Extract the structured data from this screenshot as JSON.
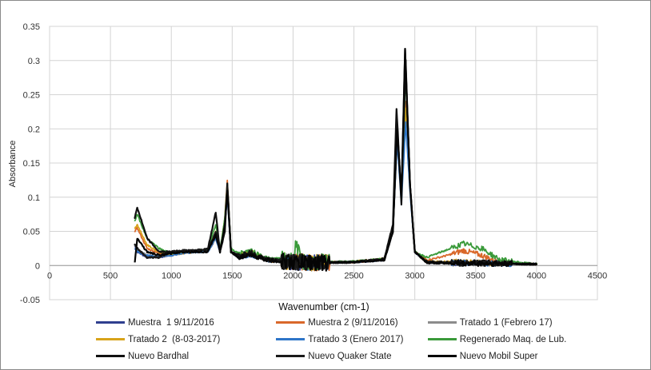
{
  "chart_data": {
    "type": "line",
    "title": "",
    "xlabel": "Wavenumber (cm-1)",
    "ylabel": "Absorbance",
    "xlim": [
      0,
      4500
    ],
    "ylim": [
      -0.05,
      0.35
    ],
    "x_ticks": [
      "0",
      "500",
      "1000",
      "1500",
      "2000",
      "2500",
      "3000",
      "3500",
      "4000",
      "4500"
    ],
    "y_ticks": [
      "-0.05",
      "0",
      "0.05",
      "0.1",
      "0.15",
      "0.2",
      "0.25",
      "0.3",
      "0.35"
    ],
    "grid": "vertical and horizontal",
    "legend_position": "bottom",
    "series": [
      {
        "name": "Muestra  1 9/11/2016",
        "color": "#2f3f8f",
        "points": [
          [
            700,
            0.03
          ],
          [
            720,
            0.02
          ],
          [
            800,
            0.012
          ],
          [
            900,
            0.012
          ],
          [
            1000,
            0.015
          ],
          [
            1100,
            0.018
          ],
          [
            1200,
            0.02
          ],
          [
            1300,
            0.02
          ],
          [
            1365,
            0.04
          ],
          [
            1400,
            0.02
          ],
          [
            1440,
            0.06
          ],
          [
            1460,
            0.105
          ],
          [
            1490,
            0.02
          ],
          [
            1550,
            0.012
          ],
          [
            1650,
            0.015
          ],
          [
            1800,
            0.008
          ],
          [
            2000,
            0.005
          ],
          [
            2200,
            0.004
          ],
          [
            2500,
            0.005
          ],
          [
            2750,
            0.008
          ],
          [
            2820,
            0.05
          ],
          [
            2855,
            0.2
          ],
          [
            2890,
            0.1
          ],
          [
            2925,
            0.225
          ],
          [
            2960,
            0.12
          ],
          [
            3000,
            0.02
          ],
          [
            3100,
            0.004
          ],
          [
            3400,
            0.004
          ],
          [
            3600,
            0.004
          ],
          [
            4000,
            0.002
          ]
        ]
      },
      {
        "name": "Muestra 2 (9/11/2016)",
        "color": "#d9682a",
        "points": [
          [
            700,
            0.05
          ],
          [
            720,
            0.055
          ],
          [
            800,
            0.025
          ],
          [
            900,
            0.018
          ],
          [
            1000,
            0.016
          ],
          [
            1100,
            0.018
          ],
          [
            1200,
            0.02
          ],
          [
            1300,
            0.022
          ],
          [
            1365,
            0.05
          ],
          [
            1400,
            0.02
          ],
          [
            1440,
            0.07
          ],
          [
            1460,
            0.125
          ],
          [
            1490,
            0.02
          ],
          [
            1550,
            0.015
          ],
          [
            1650,
            0.018
          ],
          [
            1800,
            0.008
          ],
          [
            2000,
            0.006
          ],
          [
            2200,
            0.004
          ],
          [
            2500,
            0.005
          ],
          [
            2750,
            0.008
          ],
          [
            2820,
            0.05
          ],
          [
            2855,
            0.2
          ],
          [
            2890,
            0.1
          ],
          [
            2925,
            0.24
          ],
          [
            2960,
            0.12
          ],
          [
            3000,
            0.02
          ],
          [
            3100,
            0.008
          ],
          [
            3250,
            0.014
          ],
          [
            3400,
            0.022
          ],
          [
            3550,
            0.015
          ],
          [
            3700,
            0.004
          ],
          [
            4000,
            0.002
          ]
        ]
      },
      {
        "name": "Tratado 1 (Febrero 17)",
        "color": "#8c8c8c",
        "points": [
          [
            700,
            0.03
          ],
          [
            720,
            0.025
          ],
          [
            800,
            0.015
          ],
          [
            900,
            0.013
          ],
          [
            1000,
            0.015
          ],
          [
            1100,
            0.018
          ],
          [
            1200,
            0.02
          ],
          [
            1300,
            0.02
          ],
          [
            1365,
            0.04
          ],
          [
            1400,
            0.02
          ],
          [
            1440,
            0.06
          ],
          [
            1460,
            0.11
          ],
          [
            1490,
            0.02
          ],
          [
            1550,
            0.012
          ],
          [
            1650,
            0.016
          ],
          [
            1800,
            0.008
          ],
          [
            2000,
            0.005
          ],
          [
            2200,
            0.004
          ],
          [
            2500,
            0.005
          ],
          [
            2750,
            0.008
          ],
          [
            2820,
            0.05
          ],
          [
            2855,
            0.19
          ],
          [
            2890,
            0.1
          ],
          [
            2925,
            0.22
          ],
          [
            2960,
            0.11
          ],
          [
            3000,
            0.02
          ],
          [
            3100,
            0.004
          ],
          [
            3400,
            0.003
          ],
          [
            3600,
            0.003
          ],
          [
            4000,
            0.002
          ]
        ]
      },
      {
        "name": "Tratado 2  (8-03-2017)",
        "color": "#d8a31a",
        "points": [
          [
            700,
            0.055
          ],
          [
            720,
            0.06
          ],
          [
            800,
            0.03
          ],
          [
            900,
            0.02
          ],
          [
            1000,
            0.016
          ],
          [
            1100,
            0.018
          ],
          [
            1200,
            0.02
          ],
          [
            1300,
            0.022
          ],
          [
            1365,
            0.05
          ],
          [
            1400,
            0.02
          ],
          [
            1440,
            0.07
          ],
          [
            1460,
            0.12
          ],
          [
            1490,
            0.02
          ],
          [
            1550,
            0.015
          ],
          [
            1650,
            0.02
          ],
          [
            1800,
            0.008
          ],
          [
            2000,
            0.006
          ],
          [
            2200,
            0.004
          ],
          [
            2500,
            0.006
          ],
          [
            2750,
            0.01
          ],
          [
            2820,
            0.05
          ],
          [
            2855,
            0.19
          ],
          [
            2890,
            0.1
          ],
          [
            2925,
            0.23
          ],
          [
            2960,
            0.12
          ],
          [
            3000,
            0.02
          ],
          [
            3100,
            0.006
          ],
          [
            3400,
            0.005
          ],
          [
            3600,
            0.004
          ],
          [
            4000,
            0.002
          ]
        ]
      },
      {
        "name": "Tratado 3 (Enero 2017)",
        "color": "#2e75c8",
        "points": [
          [
            700,
            0.025
          ],
          [
            720,
            0.02
          ],
          [
            800,
            0.015
          ],
          [
            900,
            0.013
          ],
          [
            1000,
            0.015
          ],
          [
            1100,
            0.018
          ],
          [
            1200,
            0.02
          ],
          [
            1300,
            0.02
          ],
          [
            1365,
            0.04
          ],
          [
            1400,
            0.02
          ],
          [
            1440,
            0.06
          ],
          [
            1460,
            0.1
          ],
          [
            1490,
            0.02
          ],
          [
            1550,
            0.012
          ],
          [
            1650,
            0.015
          ],
          [
            1800,
            0.008
          ],
          [
            2000,
            0.005
          ],
          [
            2200,
            0.004
          ],
          [
            2500,
            0.005
          ],
          [
            2750,
            0.008
          ],
          [
            2820,
            0.05
          ],
          [
            2855,
            0.18
          ],
          [
            2890,
            0.09
          ],
          [
            2925,
            0.21
          ],
          [
            2960,
            0.11
          ],
          [
            3000,
            0.02
          ],
          [
            3100,
            0.004
          ],
          [
            3400,
            0.004
          ],
          [
            3600,
            0.003
          ],
          [
            4000,
            0.002
          ]
        ]
      },
      {
        "name": "Regenerado Maq. de Lub.",
        "color": "#3a9a3a",
        "points": [
          [
            700,
            0.065
          ],
          [
            720,
            0.075
          ],
          [
            800,
            0.04
          ],
          [
            900,
            0.025
          ],
          [
            1000,
            0.018
          ],
          [
            1100,
            0.02
          ],
          [
            1200,
            0.022
          ],
          [
            1300,
            0.024
          ],
          [
            1365,
            0.06
          ],
          [
            1400,
            0.022
          ],
          [
            1440,
            0.07
          ],
          [
            1460,
            0.12
          ],
          [
            1490,
            0.025
          ],
          [
            1550,
            0.018
          ],
          [
            1650,
            0.022
          ],
          [
            1800,
            0.01
          ],
          [
            2000,
            0.008
          ],
          [
            2030,
            0.035
          ],
          [
            2060,
            0.005
          ],
          [
            2200,
            0.005
          ],
          [
            2500,
            0.006
          ],
          [
            2750,
            0.01
          ],
          [
            2820,
            0.05
          ],
          [
            2855,
            0.2
          ],
          [
            2890,
            0.1
          ],
          [
            2925,
            0.28
          ],
          [
            2960,
            0.12
          ],
          [
            3000,
            0.02
          ],
          [
            3100,
            0.012
          ],
          [
            3250,
            0.022
          ],
          [
            3400,
            0.032
          ],
          [
            3550,
            0.025
          ],
          [
            3700,
            0.008
          ],
          [
            4000,
            0.002
          ]
        ]
      },
      {
        "name": "Nuevo Bardhal",
        "color": "#111111",
        "points": [
          [
            700,
            0.07
          ],
          [
            720,
            0.085
          ],
          [
            800,
            0.04
          ],
          [
            900,
            0.02
          ],
          [
            1000,
            0.02
          ],
          [
            1100,
            0.022
          ],
          [
            1200,
            0.022
          ],
          [
            1300,
            0.024
          ],
          [
            1365,
            0.078
          ],
          [
            1400,
            0.02
          ],
          [
            1440,
            0.05
          ],
          [
            1460,
            0.12
          ],
          [
            1490,
            0.02
          ],
          [
            1550,
            0.015
          ],
          [
            1650,
            0.02
          ],
          [
            1800,
            0.008
          ],
          [
            2000,
            0.005
          ],
          [
            2200,
            0.004
          ],
          [
            2500,
            0.005
          ],
          [
            2750,
            0.01
          ],
          [
            2820,
            0.06
          ],
          [
            2850,
            0.23
          ],
          [
            2890,
            0.09
          ],
          [
            2920,
            0.315
          ],
          [
            2960,
            0.12
          ],
          [
            3000,
            0.02
          ],
          [
            3100,
            0.006
          ],
          [
            3400,
            0.004
          ],
          [
            3600,
            0.004
          ],
          [
            4000,
            0.002
          ]
        ]
      },
      {
        "name": "Nuevo Quaker State",
        "color": "#1a1a1a",
        "points": [
          [
            700,
            0.03
          ],
          [
            720,
            0.025
          ],
          [
            800,
            0.012
          ],
          [
            900,
            0.012
          ],
          [
            1000,
            0.02
          ],
          [
            1100,
            0.022
          ],
          [
            1200,
            0.022
          ],
          [
            1300,
            0.022
          ],
          [
            1365,
            0.05
          ],
          [
            1400,
            0.02
          ],
          [
            1440,
            0.06
          ],
          [
            1460,
            0.115
          ],
          [
            1490,
            0.02
          ],
          [
            1550,
            0.012
          ],
          [
            1650,
            0.016
          ],
          [
            1800,
            0.008
          ],
          [
            2000,
            0.005
          ],
          [
            2200,
            0.004
          ],
          [
            2500,
            0.005
          ],
          [
            2750,
            0.008
          ],
          [
            2820,
            0.05
          ],
          [
            2855,
            0.2
          ],
          [
            2890,
            0.1
          ],
          [
            2925,
            0.3
          ],
          [
            2960,
            0.12
          ],
          [
            3000,
            0.02
          ],
          [
            3100,
            0.004
          ],
          [
            3400,
            0.003
          ],
          [
            3600,
            0.003
          ],
          [
            4000,
            0.002
          ]
        ]
      },
      {
        "name": "Nuevo Mobil Super",
        "color": "#050505",
        "points": [
          [
            700,
            0.005
          ],
          [
            720,
            0.04
          ],
          [
            800,
            0.02
          ],
          [
            900,
            0.015
          ],
          [
            1000,
            0.018
          ],
          [
            1100,
            0.02
          ],
          [
            1200,
            0.02
          ],
          [
            1300,
            0.02
          ],
          [
            1365,
            0.045
          ],
          [
            1400,
            0.02
          ],
          [
            1440,
            0.06
          ],
          [
            1460,
            0.11
          ],
          [
            1490,
            0.02
          ],
          [
            1550,
            0.012
          ],
          [
            1650,
            0.015
          ],
          [
            1800,
            0.008
          ],
          [
            2000,
            0.005
          ],
          [
            2200,
            0.004
          ],
          [
            2500,
            0.005
          ],
          [
            2750,
            0.008
          ],
          [
            2820,
            0.05
          ],
          [
            2855,
            0.2
          ],
          [
            2890,
            0.1
          ],
          [
            2920,
            0.318
          ],
          [
            2960,
            0.12
          ],
          [
            3000,
            0.02
          ],
          [
            3100,
            0.004
          ],
          [
            3400,
            0.003
          ],
          [
            3600,
            0.003
          ],
          [
            4000,
            0.002
          ]
        ]
      }
    ]
  }
}
